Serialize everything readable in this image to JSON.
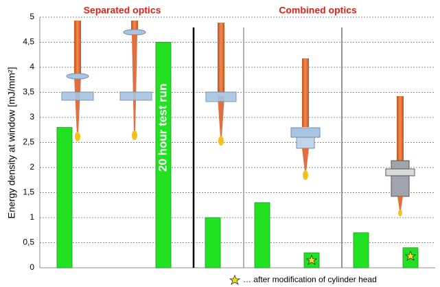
{
  "chart_data": {
    "type": "bar",
    "group_labels": [
      "Separated optics",
      "Combined optics"
    ],
    "y_label": "Energy density at window [mJ/mm²]",
    "annotation": "20 hour test run",
    "footnote": "… after modification of cylinder head",
    "categories": [
      null,
      null,
      null,
      null,
      null,
      null,
      null,
      null
    ],
    "values": [
      2.8,
      null,
      4.5,
      1.0,
      1.3,
      0.3,
      0.7,
      0.4
    ],
    "color": "#22e022",
    "ylim": [
      0,
      5
    ],
    "yticks": [
      0,
      {
        "value": 0.5,
        "label": "0,5"
      },
      1,
      {
        "value": 1.5,
        "label": "1,5"
      },
      2,
      {
        "value": 2.5,
        "label": "2,5"
      },
      3,
      {
        "value": 3.5,
        "label": "3,5"
      },
      4,
      {
        "value": 4.5,
        "label": "4,5"
      },
      5
    ],
    "grid": true
  }
}
